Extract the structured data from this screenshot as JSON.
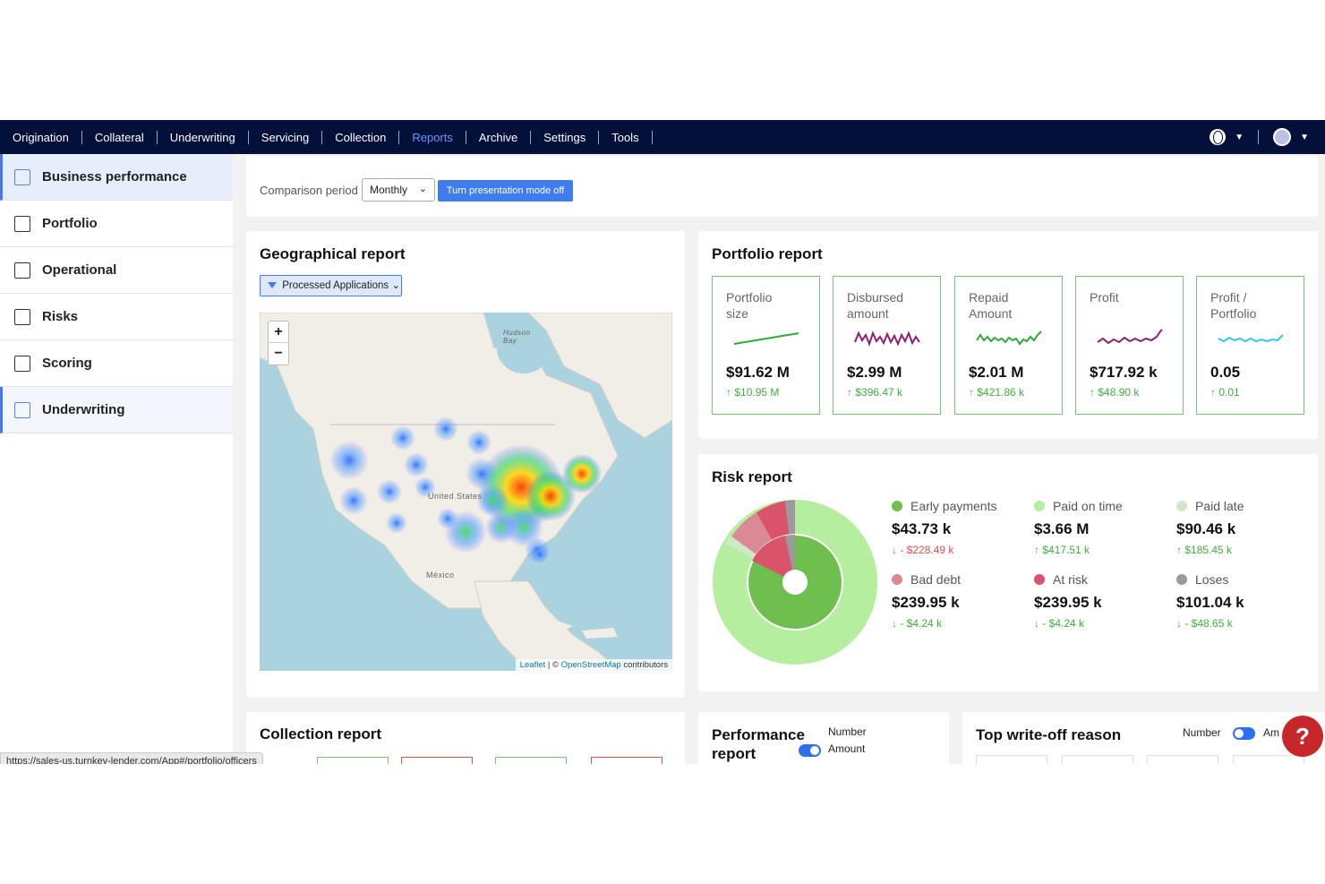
{
  "topnav": {
    "items": [
      "Origination",
      "Collateral",
      "Underwriting",
      "Servicing",
      "Collection",
      "Reports",
      "Archive",
      "Settings",
      "Tools"
    ],
    "active": "Reports",
    "icons": [
      "globe-icon",
      "avatar-icon"
    ]
  },
  "sidebar": {
    "items": [
      {
        "label": "Business performance",
        "icon": "report-edit-icon"
      },
      {
        "label": "Portfolio",
        "icon": "clipboard-icon"
      },
      {
        "label": "Operational",
        "icon": "panel-icon"
      },
      {
        "label": "Risks",
        "icon": "presentation-icon"
      },
      {
        "label": "Scoring",
        "icon": "edit-doc-icon"
      },
      {
        "label": "Underwriting",
        "icon": "checklist-icon"
      }
    ]
  },
  "period": {
    "label": "Comparison period",
    "select_value": "Monthly",
    "presentation_button": "Turn presentation mode off"
  },
  "geo": {
    "title": "Geographical report",
    "filter_label": "Processed Applications",
    "zoom_in": "+",
    "zoom_out": "−",
    "map_labels": {
      "us": "United States",
      "mexico": "México",
      "hudson": "Hudson Bay"
    },
    "attribution_leaflet": "Leaflet",
    "attribution_sep": " | © ",
    "attribution_osm": "OpenStreetMap",
    "attribution_rest": " contributors"
  },
  "portfolio": {
    "title": "Portfolio report",
    "kpis": [
      {
        "title1": "Portfolio",
        "title2": "size",
        "value": "$91.62 M",
        "delta": "$10.95 M",
        "color": "#2fa83a"
      },
      {
        "title1": "Disbursed",
        "title2": "amount",
        "value": "$2.99 M",
        "delta": "$396.47 k",
        "color": "#8a1f7a"
      },
      {
        "title1": "Repaid",
        "title2": "Amount",
        "value": "$2.01 M",
        "delta": "$421.86 k",
        "color": "#2fa83a"
      },
      {
        "title1": "Profit",
        "title2": "",
        "value": "$717.92 k",
        "delta": "$48.90 k",
        "color": "#8a1f7a"
      },
      {
        "title1": "Profit /",
        "title2": "Portfolio",
        "value": "0.05",
        "delta": "0.01",
        "color": "#33c7e8"
      }
    ]
  },
  "risk": {
    "title": "Risk report",
    "legend": [
      {
        "label": "Early payments",
        "value": "$43.73 k",
        "delta": "- $228.49 k",
        "dir": "down",
        "color": "#6fbf4f"
      },
      {
        "label": "Paid on time",
        "value": "$3.66 M",
        "delta": "$417.51 k",
        "dir": "up",
        "color": "#b4ee9e"
      },
      {
        "label": "Paid late",
        "value": "$90.46 k",
        "delta": "$185.45 k",
        "dir": "up",
        "color": "#cfe9c4"
      },
      {
        "label": "Bad debt",
        "value": "$239.95 k",
        "delta": "- $4.24 k",
        "dir": "downg",
        "color": "#d98a95"
      },
      {
        "label": "At risk",
        "value": "$239.95 k",
        "delta": "- $4.24 k",
        "dir": "downg",
        "color": "#d9546a"
      },
      {
        "label": "Loses",
        "value": "$101.04 k",
        "delta": "- $48.65 k",
        "dir": "downg",
        "color": "#9b9b9b"
      }
    ]
  },
  "collection": {
    "title": "Collection report"
  },
  "performance": {
    "title1": "Performance",
    "title2": "report",
    "opt_number": "Number",
    "opt_amount": "Amount"
  },
  "writeoff": {
    "title": "Top write-off reason",
    "opt_number": "Number",
    "opt_amount": "Am"
  },
  "help": {
    "label": "?"
  },
  "status_url": "https://sales-us.turnkey-lender.com/App#/portfolio/officers"
}
